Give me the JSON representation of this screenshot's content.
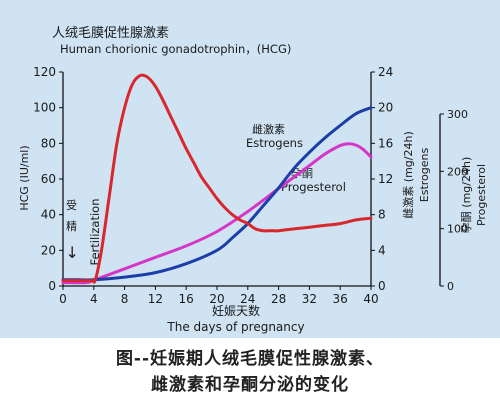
{
  "chart_data": {
    "type": "line",
    "title_cn": "人绒毛膜促性腺激素",
    "title_en": "Human chorionic gonadotrophin，(HCG)",
    "xlabel_cn": "妊娠天数",
    "xlabel_en": "The days of pregnancy",
    "x_ticks": [
      "0",
      "4",
      "8",
      "12",
      "16",
      "20",
      "24",
      "28",
      "32",
      "36",
      "40"
    ],
    "xlim": [
      0,
      40
    ],
    "fertilization": {
      "label_cn_1": "受",
      "label_cn_2": "精",
      "label_en": "Fertilization",
      "arrow": "↓"
    },
    "axes": {
      "hcg": {
        "label": "HCG (IU/ml)",
        "ticks": [
          "0",
          "20",
          "40",
          "60",
          "80",
          "100",
          "120"
        ],
        "range": [
          0,
          120
        ]
      },
      "estrogens": {
        "label_cn": "雌激素 (mg/24h)",
        "label_en": "Estrogens",
        "ticks": [
          "0",
          "4",
          "8",
          "12",
          "16",
          "20",
          "24"
        ],
        "range": [
          0,
          24
        ]
      },
      "progesterol": {
        "label_cn": "孕酮 (mg/24h)",
        "label_en": "Progesterol",
        "ticks": [
          "0",
          "100",
          "200",
          "300"
        ],
        "range": [
          0,
          300
        ]
      }
    },
    "series": [
      {
        "name_en": "Human chorionic gonadotrophin，(HCG)",
        "axis": "hcg",
        "color": "#d8282e",
        "x": [
          0,
          3,
          3.8,
          4.2,
          5,
          6,
          7,
          8,
          9,
          10,
          11,
          12,
          13,
          14,
          15,
          16,
          17,
          18,
          19,
          20,
          21,
          22,
          23,
          24,
          25,
          26,
          27,
          28,
          30,
          32,
          34,
          36,
          38,
          40
        ],
        "y": [
          3,
          3,
          3,
          3.5,
          20,
          50,
          80,
          100,
          113,
          118,
          117,
          112,
          104,
          95,
          86,
          77,
          69,
          61,
          55,
          49,
          44,
          40,
          37,
          35,
          32,
          31,
          31,
          31,
          32,
          33,
          34,
          35,
          37,
          38
        ]
      },
      {
        "name_cn": "雌激素",
        "name_en": "Estrogens",
        "axis": "estrogens",
        "color": "#1c3ea8",
        "x": [
          0,
          2,
          4,
          8,
          12,
          16,
          20,
          22,
          24,
          26,
          28,
          30,
          32,
          34,
          36,
          38,
          40
        ],
        "y": [
          0.7,
          0.7,
          0.7,
          1.0,
          1.5,
          2.5,
          4.0,
          5.4,
          7.0,
          9.0,
          11.0,
          13.2,
          15.0,
          16.6,
          18.0,
          19.3,
          20.0
        ]
      },
      {
        "name_cn": "孕酮",
        "name_en": "Progesterol",
        "axis": "progesterol",
        "color": "#d636c8",
        "x": [
          0,
          3,
          4,
          8,
          12,
          16,
          20,
          24,
          28,
          32,
          34,
          36,
          37,
          38,
          39,
          40
        ],
        "y": [
          6,
          6,
          10,
          30,
          50,
          70,
          95,
          130,
          170,
          210,
          230,
          245,
          248,
          246,
          238,
          225
        ]
      }
    ]
  },
  "caption": {
    "line1": "图--妊娠期人绒毛膜促性腺激素、",
    "line2": "雌激素和孕酮分泌的变化"
  }
}
